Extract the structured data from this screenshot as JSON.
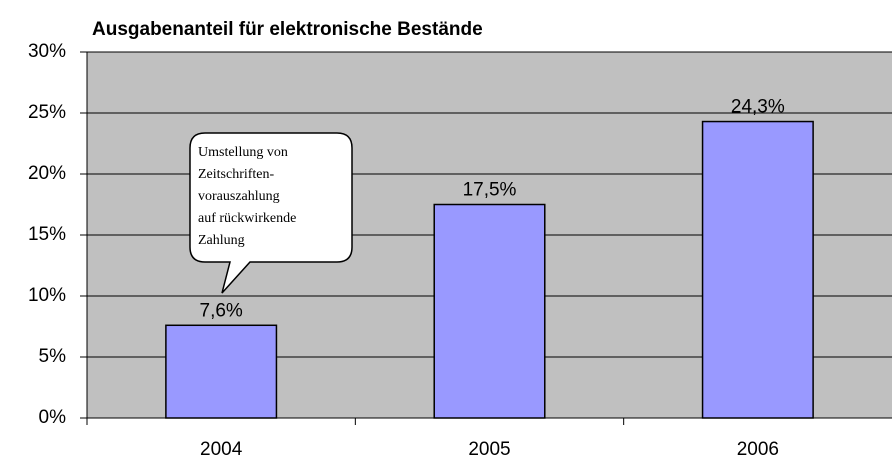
{
  "chart_data": {
    "type": "bar",
    "title": "Ausgabenanteil für elektronische Bestände",
    "categories": [
      "2004",
      "2005",
      "2006"
    ],
    "values": [
      7.6,
      17.5,
      24.3
    ],
    "value_labels": [
      "7,6%",
      "17,5%",
      "24,3%"
    ],
    "color": "#9999ff",
    "ylim": [
      0,
      30
    ],
    "yticks": [
      {
        "value": 0,
        "label": "0%"
      },
      {
        "value": 5,
        "label": "5%"
      },
      {
        "value": 10,
        "label": "10%"
      },
      {
        "value": 15,
        "label": "15%"
      },
      {
        "value": 20,
        "label": "20%"
      },
      {
        "value": 25,
        "label": "25%"
      },
      {
        "value": 30,
        "label": "30%"
      }
    ],
    "grid": true,
    "annotation_lines": [
      "Umstellung von",
      "Zeitschriften-",
      "vorauszahlung",
      "auf rückwirkende",
      "Zahlung"
    ]
  }
}
